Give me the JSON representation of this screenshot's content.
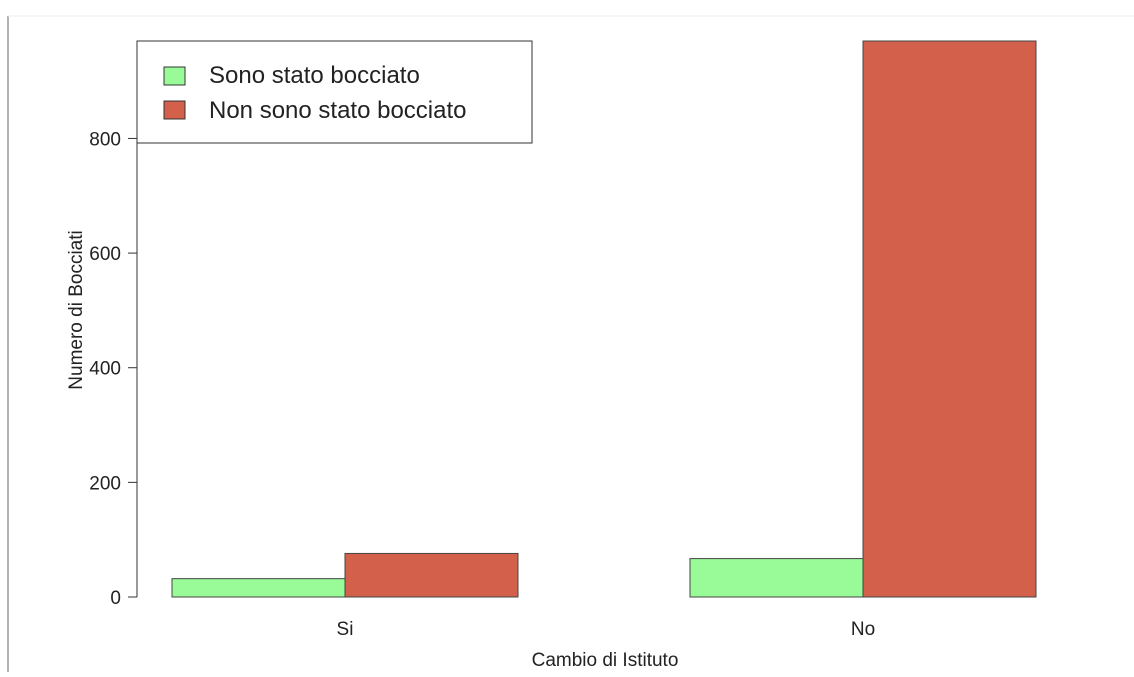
{
  "chart_data": {
    "type": "bar",
    "title": "",
    "xlabel": "Cambio di Istituto",
    "ylabel": "Numero di Bocciati",
    "categories": [
      "Si",
      "No"
    ],
    "ylim": [
      0,
      970
    ],
    "yticks": [
      0,
      200,
      400,
      600,
      800
    ],
    "grid": false,
    "legend_position": "top-left",
    "series": [
      {
        "name": "Sono stato bocciato",
        "values": [
          32,
          67
        ],
        "color": "#98fb98"
      },
      {
        "name": "Non sono stato bocciato",
        "values": [
          76,
          970
        ],
        "color": "#d2604a"
      }
    ]
  }
}
